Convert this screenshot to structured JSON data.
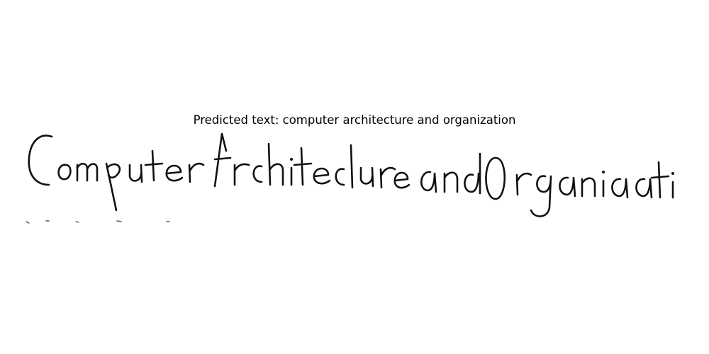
{
  "caption": {
    "label": "Predicted text:",
    "value": "computer architecture and organization"
  },
  "handwriting_image": {
    "content": "Computer Architecture and Organization",
    "ink_color": "#111111",
    "background_color": "#ffffff"
  }
}
